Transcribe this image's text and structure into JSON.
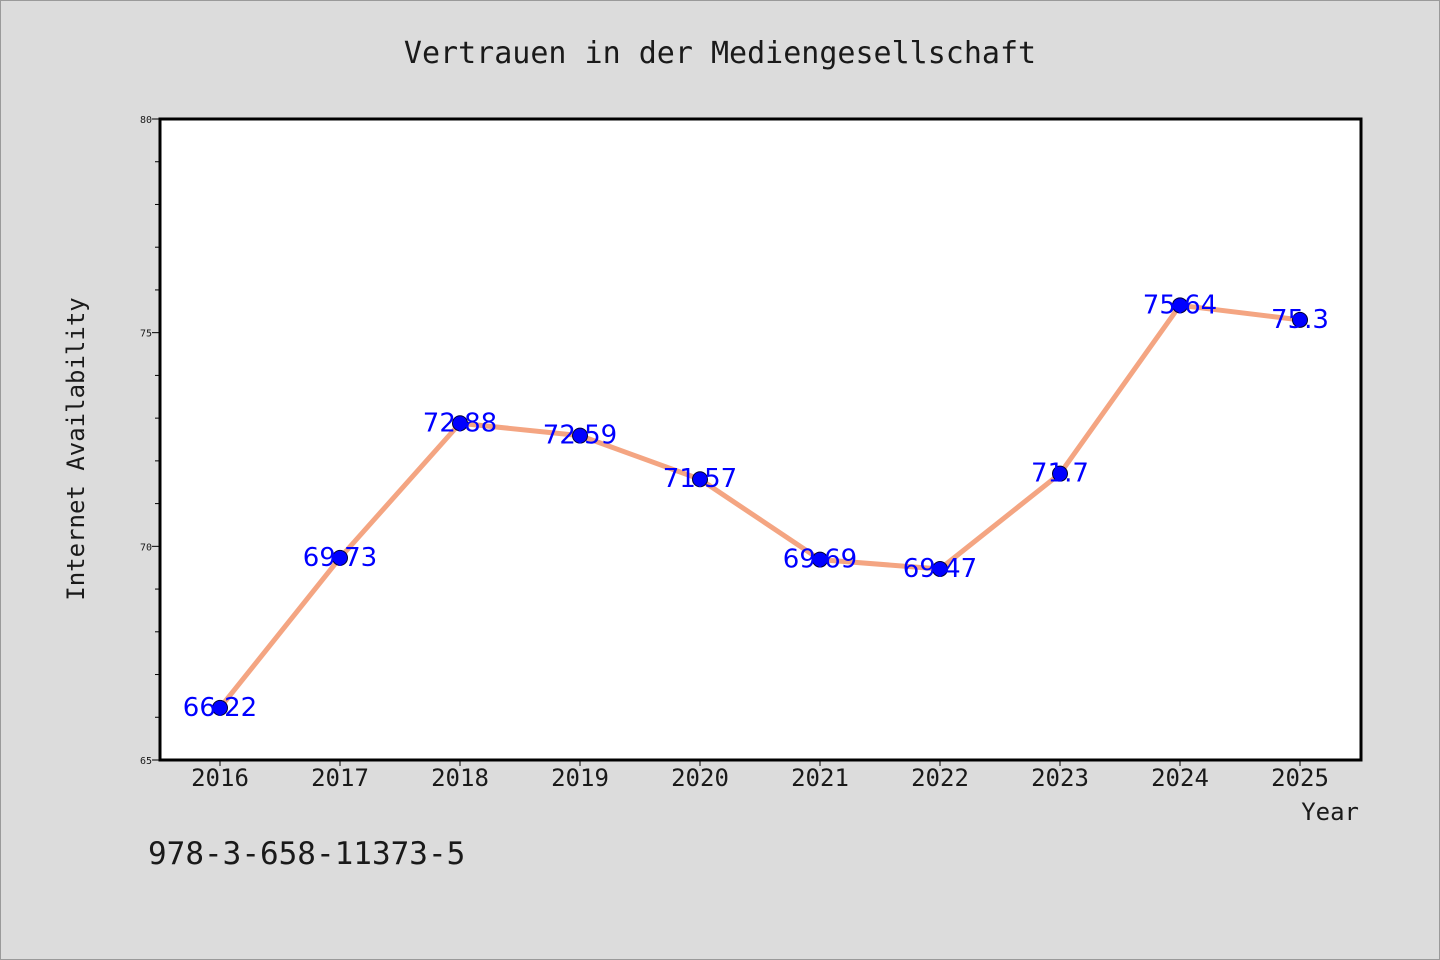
{
  "chart_data": {
    "type": "line",
    "title": "Vertrauen in der Mediengesellschaft",
    "xlabel": "Year",
    "ylabel": "Internet Availability",
    "categories": [
      "2016",
      "2017",
      "2018",
      "2019",
      "2020",
      "2021",
      "2022",
      "2023",
      "2024",
      "2025"
    ],
    "series": [
      {
        "values": [
          66.22,
          69.73,
          72.88,
          72.59,
          71.57,
          69.69,
          69.47,
          71.7,
          75.64,
          75.3
        ],
        "data_labels": [
          "66.22",
          "69.73",
          "72.88",
          "72.59",
          "71.57",
          "69.69",
          "69.47",
          "71.7",
          "75.64",
          "75.3"
        ]
      }
    ],
    "ylim": [
      65,
      80
    ],
    "yticks": [
      "65",
      "70",
      "75",
      "80"
    ],
    "grid": false,
    "line_color": "#f4a582",
    "marker_color": "#0000ff",
    "data_label_color": "#0000ff",
    "background_color": "#dcdcdc",
    "plot_background_color": "#ffffff"
  },
  "footer_text": "978-3-658-11373-5"
}
